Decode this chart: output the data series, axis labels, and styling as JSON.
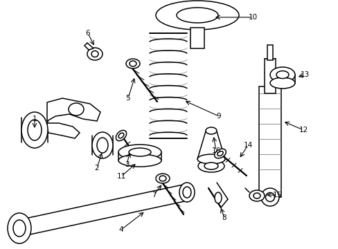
{
  "background_color": "#ffffff",
  "line_color": "#000000",
  "line_width": 1.1,
  "figsize": [
    4.89,
    3.6
  ],
  "dpi": 100
}
